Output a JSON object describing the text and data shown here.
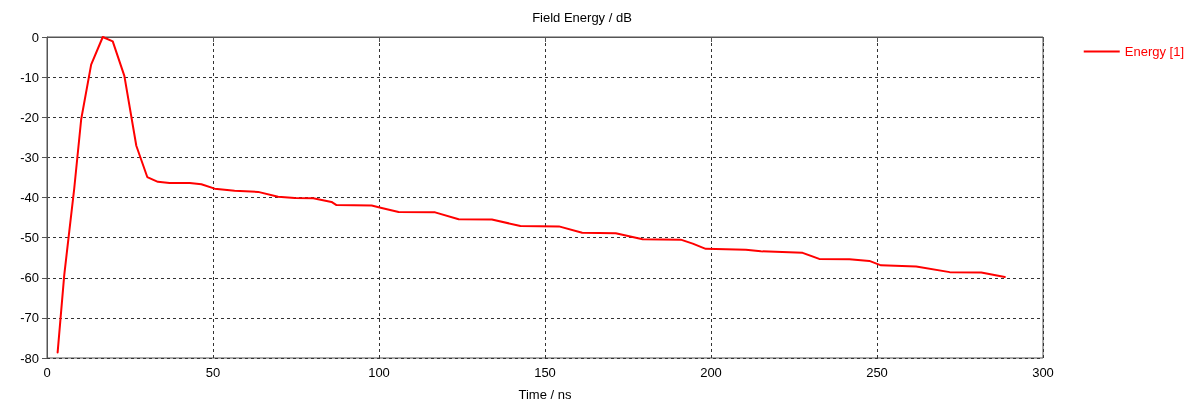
{
  "chart_data": {
    "type": "line",
    "title": "Field Energy / dB",
    "xlabel": "Time / ns",
    "xlim": [
      0,
      300
    ],
    "xticks": [
      0,
      50,
      100,
      150,
      200,
      250,
      300
    ],
    "ylim": [
      -80,
      0
    ],
    "yticks": [
      -80,
      -70,
      -60,
      -50,
      -40,
      -30,
      -20,
      -10,
      0
    ],
    "grid": true,
    "legend": "top right",
    "line_style": "solid",
    "marker": "none",
    "series": [
      {
        "name": "Energy [1]",
        "color": "#ff0000",
        "x": [
          3.2,
          5.2,
          6.7,
          8.2,
          10.3,
          13.3,
          16.8,
          19.8,
          23.3,
          26.9,
          30.2,
          33.4,
          36.9,
          43,
          46.5,
          50.5,
          56.5,
          63.6,
          69.6,
          74.6,
          80.2,
          85.7,
          87.2,
          97.8,
          100.8,
          105.9,
          116.9,
          124,
          134,
          142.6,
          154.2,
          161.2,
          171.3,
          179.4,
          190.9,
          194.5,
          198.4,
          210.5,
          215,
          227.6,
          232.6,
          241.7,
          247.7,
          251.2,
          261.8,
          271.9,
          281.4,
          288.5
        ],
        "values": [
          -78.6,
          -59.3,
          -48.5,
          -37.8,
          -20.5,
          -6.9,
          0,
          -1.1,
          -9.7,
          -27.1,
          -34.9,
          -36.1,
          -36.4,
          -36.4,
          -36.7,
          -37.8,
          -38.3,
          -38.6,
          -39.8,
          -40.1,
          -40.2,
          -41.1,
          -41.9,
          -42,
          -42.6,
          -43.6,
          -43.7,
          -45.4,
          -45.5,
          -47.1,
          -47.2,
          -48.8,
          -48.9,
          -50.4,
          -50.5,
          -51.5,
          -52.8,
          -53,
          -53.4,
          -53.8,
          -55.3,
          -55.4,
          -55.8,
          -56.9,
          -57.2,
          -58.6,
          -58.7,
          -59.8
        ]
      }
    ]
  }
}
